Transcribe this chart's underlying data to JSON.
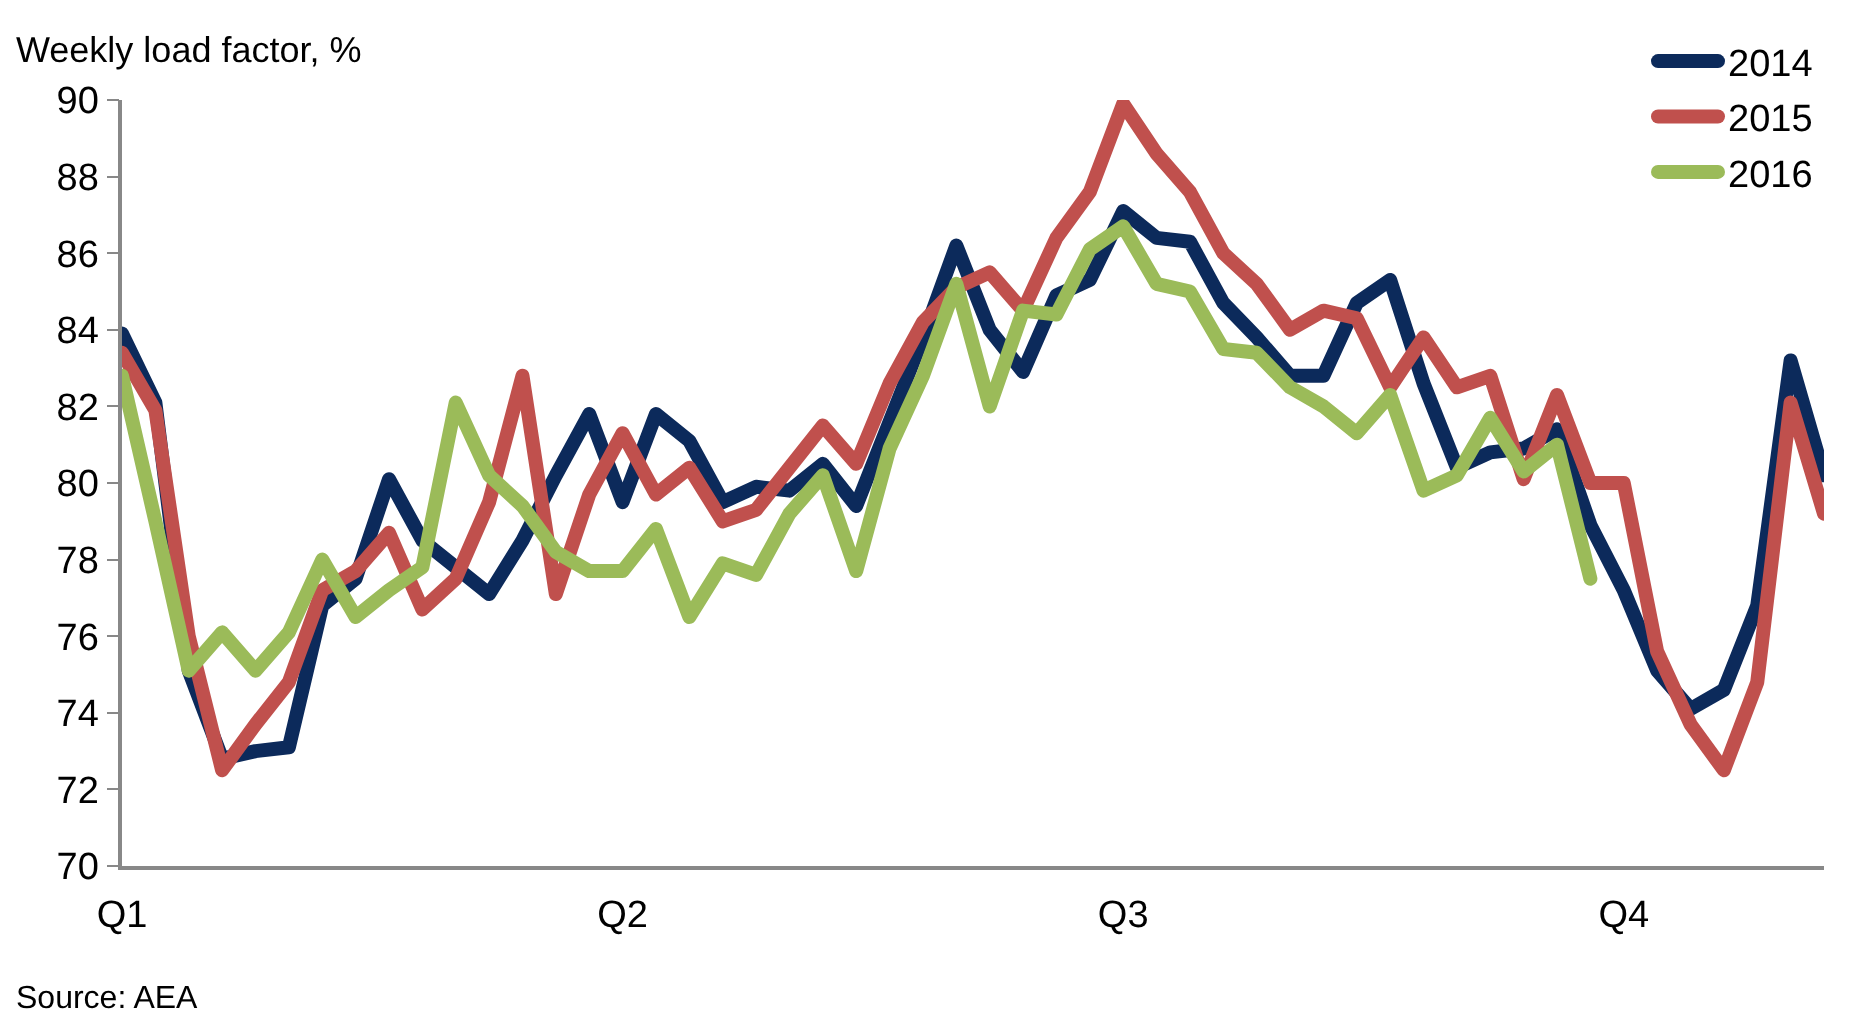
{
  "chart_data": {
    "type": "line",
    "ylabel": "Weekly load factor, %",
    "annotations": [
      "Source: AEA"
    ],
    "categories": [
      "Q1",
      null,
      null,
      null,
      null,
      null,
      null,
      null,
      null,
      null,
      null,
      null,
      null,
      null,
      null,
      "Q2",
      null,
      null,
      null,
      null,
      null,
      null,
      null,
      null,
      null,
      null,
      null,
      null,
      null,
      null,
      "Q3",
      null,
      null,
      null,
      null,
      null,
      null,
      null,
      null,
      null,
      null,
      null,
      null,
      null,
      null,
      "Q4",
      null,
      null,
      null,
      null,
      null,
      null
    ],
    "series": [
      {
        "name": "2014",
        "color": "#0c2a5b",
        "values": [
          83.9,
          82.1,
          75.1,
          72.8,
          73.0,
          73.1,
          76.8,
          77.5,
          80.1,
          78.5,
          77.8,
          77.1,
          78.5,
          80.2,
          81.8,
          79.5,
          81.8,
          81.1,
          79.5,
          79.9,
          79.8,
          80.5,
          79.4,
          81.6,
          83.8,
          86.2,
          84.0,
          82.9,
          84.9,
          85.3,
          87.1,
          86.4,
          86.3,
          84.7,
          83.8,
          82.8,
          82.8,
          84.7,
          85.3,
          82.6,
          80.4,
          80.8,
          80.9,
          81.4,
          78.9,
          77.2,
          75.1,
          74.1,
          74.6,
          76.8,
          83.2,
          80.2
        ]
      },
      {
        "name": "2015",
        "color": "#c0504d",
        "values": [
          83.4,
          81.9,
          76.0,
          72.5,
          73.7,
          74.8,
          77.2,
          77.7,
          78.7,
          76.7,
          77.5,
          79.5,
          82.8,
          77.1,
          79.7,
          81.3,
          79.7,
          80.4,
          79.0,
          79.3,
          80.4,
          81.5,
          80.5,
          82.6,
          84.2,
          85.1,
          85.5,
          84.5,
          86.4,
          87.6,
          89.9,
          88.6,
          87.6,
          86.0,
          85.2,
          84.0,
          84.5,
          84.3,
          82.5,
          83.8,
          82.5,
          82.8,
          80.1,
          82.3,
          80.0,
          80.0,
          75.6,
          73.7,
          72.5,
          74.8,
          82.1,
          79.2
        ]
      },
      {
        "name": "2016",
        "color": "#9bbb59",
        "values": [
          82.8,
          79.0,
          75.1,
          76.1,
          75.1,
          76.1,
          78.0,
          76.5,
          77.2,
          77.8,
          82.1,
          80.2,
          79.4,
          78.2,
          77.7,
          77.7,
          78.8,
          76.5,
          77.9,
          77.6,
          79.2,
          80.2,
          77.7,
          80.9,
          82.8,
          85.2,
          82.0,
          84.5,
          84.4,
          86.1,
          86.7,
          85.2,
          85.0,
          83.5,
          83.4,
          82.5,
          82.0,
          81.3,
          82.3,
          79.8,
          80.2,
          81.7,
          80.3,
          81.0,
          77.5,
          null,
          null,
          null,
          null,
          null,
          null,
          null
        ]
      }
    ],
    "ylim": [
      70,
      90
    ],
    "yticks": [
      70,
      72,
      74,
      76,
      78,
      80,
      82,
      84,
      86,
      88,
      90
    ],
    "legend": "top right",
    "marker": "none",
    "line_style": "solid"
  }
}
